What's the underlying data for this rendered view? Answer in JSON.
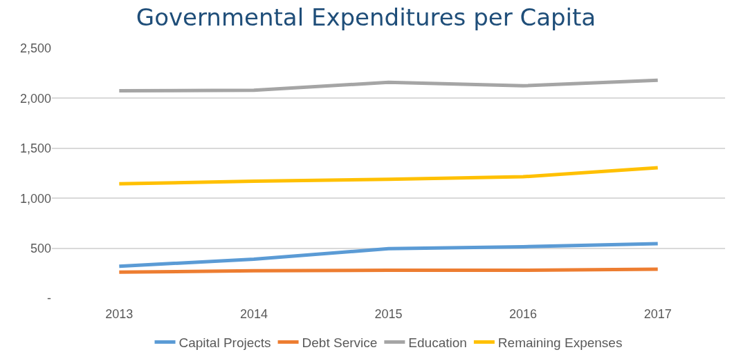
{
  "chart_data": {
    "type": "line",
    "title": "Governmental Expenditures per Capita",
    "categories": [
      "2013",
      "2014",
      "2015",
      "2016",
      "2017"
    ],
    "series": [
      {
        "name": "Capital Projects",
        "color": "#5b9bd5",
        "values": [
          320,
          390,
          495,
          515,
          545
        ]
      },
      {
        "name": "Debt Service",
        "color": "#ed7d31",
        "values": [
          260,
          275,
          280,
          280,
          290
        ]
      },
      {
        "name": "Education",
        "color": "#a5a5a5",
        "values": [
          2075,
          2080,
          2160,
          2125,
          2180
        ]
      },
      {
        "name": "Remaining Expenses",
        "color": "#ffc000",
        "values": [
          1145,
          1170,
          1190,
          1215,
          1305
        ]
      }
    ],
    "ylim": [
      0,
      2500
    ],
    "yticks": [
      {
        "value": 0,
        "label": "-"
      },
      {
        "value": 500,
        "label": "500"
      },
      {
        "value": 1000,
        "label": "1,000"
      },
      {
        "value": 1500,
        "label": "1,500"
      },
      {
        "value": 2000,
        "label": "2,000"
      },
      {
        "value": 2500,
        "label": "2,500"
      }
    ],
    "grid": "y",
    "legend": "bottom",
    "marker": "none",
    "line_style": "solid"
  }
}
